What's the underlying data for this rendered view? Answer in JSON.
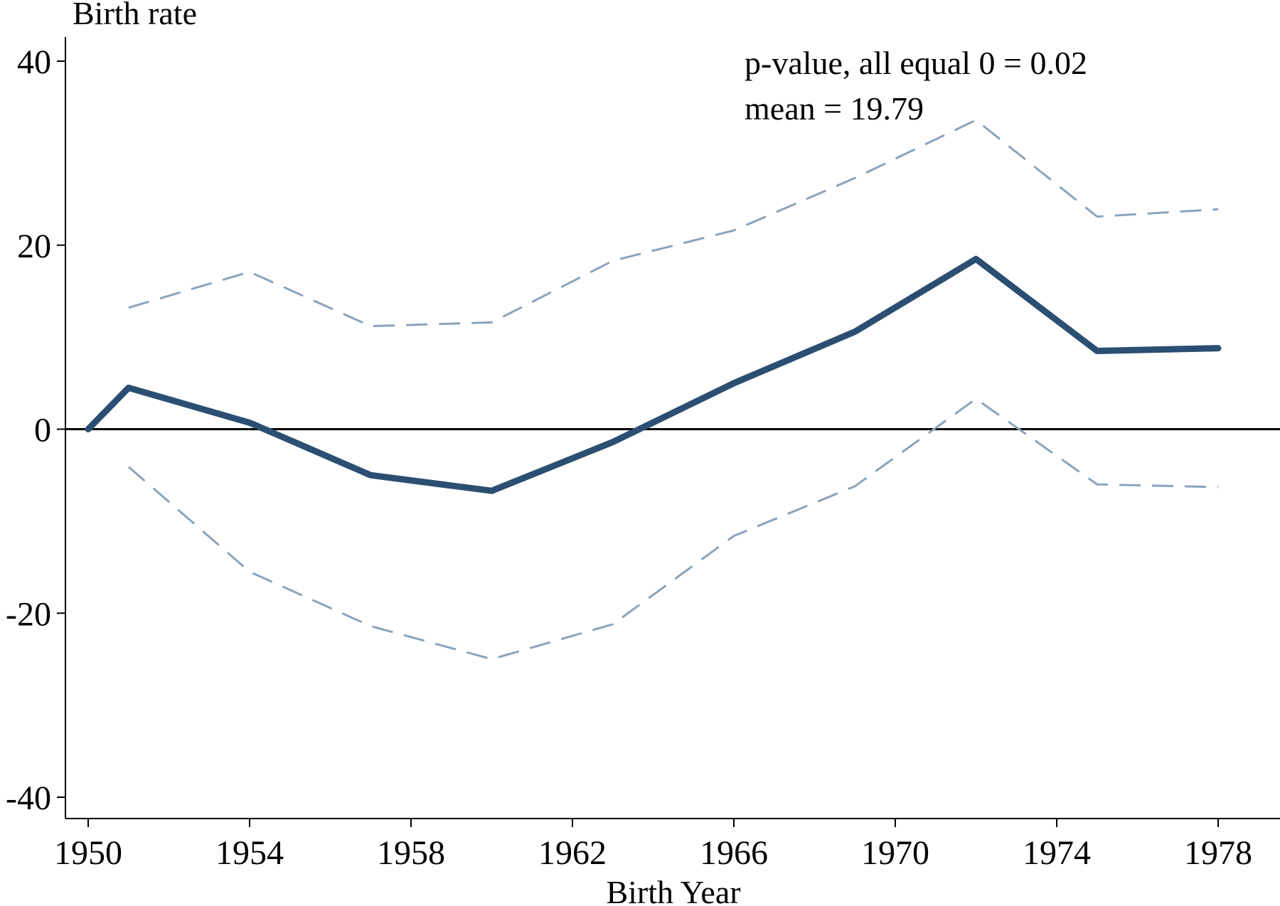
{
  "chart_data": {
    "type": "line",
    "ylabel": "Birth rate",
    "xlabel": "Birth Year",
    "xlim": [
      1950,
      1978
    ],
    "ylim": [
      -40,
      40
    ],
    "xticks": [
      1950,
      1954,
      1958,
      1962,
      1966,
      1970,
      1974,
      1978
    ],
    "yticks": [
      -40,
      -20,
      0,
      20,
      40
    ],
    "annotations": [
      "p-value, all equal 0 = 0.02",
      "mean = 19.79"
    ],
    "colors": {
      "estimate": "#2b4f72",
      "ci": "#8ba3ba",
      "zero_line": "#000000"
    },
    "series": [
      {
        "name": "Estimate",
        "style": "solid",
        "x": [
          1950,
          1951,
          1954,
          1957,
          1960,
          1963,
          1966,
          1969,
          1972,
          1975,
          1978
        ],
        "y": [
          0,
          4.5,
          0.7,
          -5,
          -6.7,
          -1.4,
          5,
          10.6,
          18.5,
          8.5,
          8.8
        ]
      },
      {
        "name": "Upper 95% CI",
        "style": "dashed",
        "x": [
          1951,
          1954,
          1957,
          1960,
          1963,
          1966,
          1969,
          1972,
          1975,
          1978
        ],
        "y": [
          13.2,
          17.1,
          11.2,
          11.6,
          18.3,
          21.6,
          27.3,
          33.6,
          23.1,
          23.9
        ]
      },
      {
        "name": "Lower 95% CI",
        "style": "dashed",
        "x": [
          1951,
          1954,
          1957,
          1960,
          1963,
          1966,
          1969,
          1972,
          1975,
          1978
        ],
        "y": [
          -4.1,
          -15.5,
          -21.4,
          -25,
          -21.2,
          -11.6,
          -6.2,
          3.3,
          -6,
          -6.3
        ]
      }
    ]
  }
}
